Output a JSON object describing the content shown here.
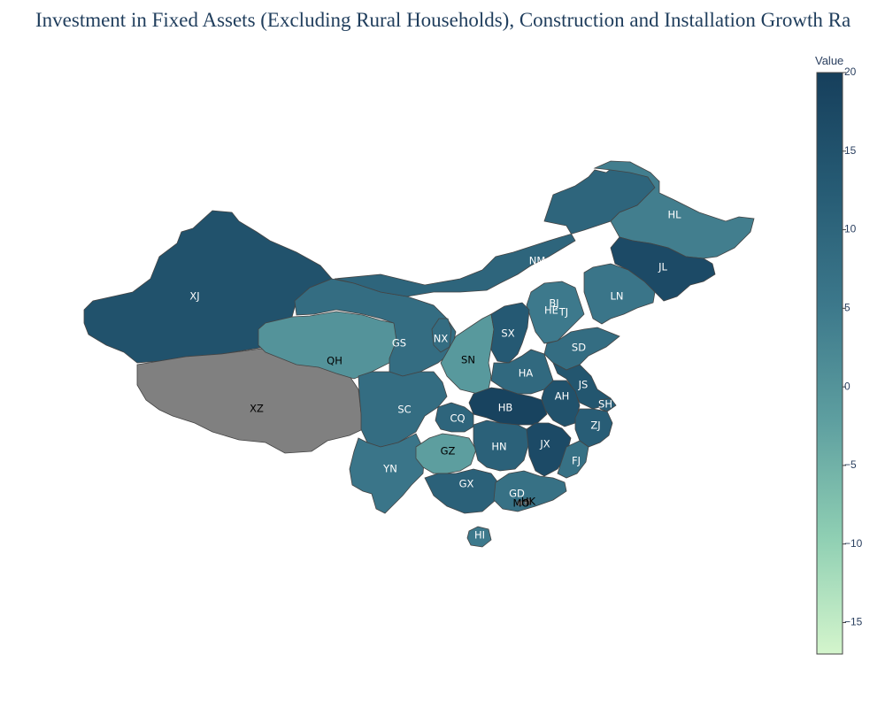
{
  "title": "Investment in Fixed Assets (Excluding Rural Households), Construction and Installation Growth Ra",
  "colorbar": {
    "title": "Value",
    "min": -17,
    "max": 20,
    "ticks": [
      20,
      15,
      10,
      5,
      0,
      -5,
      -10,
      -15
    ],
    "colorscale": [
      "#d4f5cc",
      "#8fcfb3",
      "#5e9fa0",
      "#3c788b",
      "#265b74",
      "#163f5c"
    ]
  },
  "no_data_color": "#808080",
  "chart_data": {
    "type": "choropleth",
    "title": "Investment in Fixed Assets (Excluding Rural Households), Construction and Installation Growth Ra",
    "colorbar_title": "Value",
    "range": [
      -17,
      20
    ],
    "regions": [
      {
        "code": "XJ",
        "value": 15
      },
      {
        "code": "XZ",
        "value": null
      },
      {
        "code": "QH",
        "value": 0
      },
      {
        "code": "GS",
        "value": 8
      },
      {
        "code": "NM",
        "value": 10
      },
      {
        "code": "HL",
        "value": 4
      },
      {
        "code": "JL",
        "value": 17
      },
      {
        "code": "LN",
        "value": 6
      },
      {
        "code": "BJ",
        "value": 2
      },
      {
        "code": "TJ",
        "value": 3
      },
      {
        "code": "HE",
        "value": 5
      },
      {
        "code": "NX",
        "value": 8
      },
      {
        "code": "SN",
        "value": -1
      },
      {
        "code": "SX",
        "value": 13
      },
      {
        "code": "SD",
        "value": 8
      },
      {
        "code": "HA",
        "value": 9
      },
      {
        "code": "JS",
        "value": 14
      },
      {
        "code": "AH",
        "value": 15
      },
      {
        "code": "SH",
        "value": 12
      },
      {
        "code": "HB",
        "value": 19
      },
      {
        "code": "ZJ",
        "value": 12
      },
      {
        "code": "SC",
        "value": 8
      },
      {
        "code": "CQ",
        "value": 10
      },
      {
        "code": "YN",
        "value": 6
      },
      {
        "code": "GZ",
        "value": -2
      },
      {
        "code": "HN",
        "value": 11
      },
      {
        "code": "JX",
        "value": 17
      },
      {
        "code": "FJ",
        "value": 7
      },
      {
        "code": "GX",
        "value": 11
      },
      {
        "code": "GD",
        "value": 7
      },
      {
        "code": "HK",
        "value": null
      },
      {
        "code": "MO",
        "value": null
      },
      {
        "code": "HI",
        "value": 5
      }
    ]
  }
}
